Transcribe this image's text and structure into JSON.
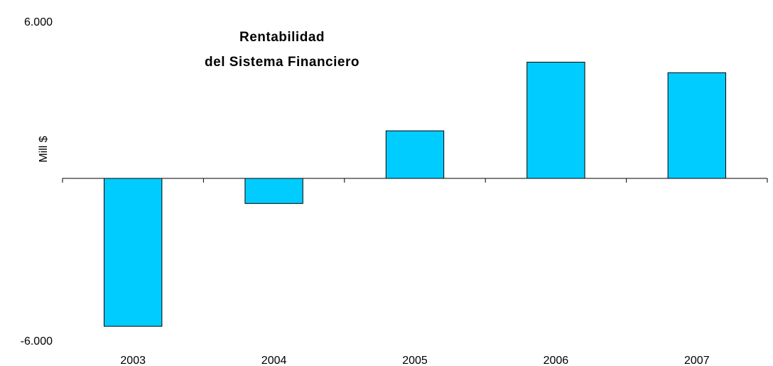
{
  "chart_data": {
    "type": "bar",
    "title": [
      "Rentabilidad",
      "del Sistema Financiero"
    ],
    "y_label": "Mill $",
    "categories": [
      "2003",
      "2004",
      "2005",
      "2006",
      "2007"
    ],
    "values": [
      -5600,
      -950,
      1800,
      4400,
      4000
    ],
    "color": "#00ccff",
    "ylim": [
      -6000,
      6000
    ],
    "yticks": [
      {
        "value": -6000,
        "label": "-6.000"
      },
      {
        "value": 6000,
        "label": "6.000"
      }
    ],
    "grid": false
  }
}
